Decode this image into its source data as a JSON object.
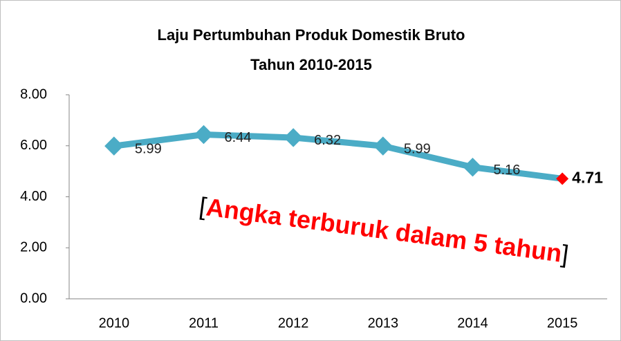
{
  "chart_data": {
    "type": "line",
    "title": [
      "Laju Pertumbuhan Produk Domestik Bruto",
      "Tahun 2010-2015"
    ],
    "categories": [
      "2010",
      "2011",
      "2012",
      "2013",
      "2014",
      "2015"
    ],
    "series": [
      {
        "name": "Laju Pertumbuhan",
        "color": "#4bacc6",
        "values": [
          5.99,
          6.44,
          6.32,
          5.99,
          5.16,
          4.71
        ],
        "marker_colors": [
          "#4bacc6",
          "#4bacc6",
          "#4bacc6",
          "#4bacc6",
          "#4bacc6",
          "#ff0000"
        ]
      }
    ],
    "ylim": [
      0,
      8
    ],
    "yticks": [
      {
        "value": 0,
        "label": "0.00"
      },
      {
        "value": 2,
        "label": "2.00"
      },
      {
        "value": 4,
        "label": "4.00"
      },
      {
        "value": 6,
        "label": "6.00"
      },
      {
        "value": 8,
        "label": "8.00"
      }
    ],
    "grid": false,
    "annotation": {
      "open": "[",
      "text": "Angka terburuk dalam 5 tahun",
      "close": "]",
      "color": "#ff0000"
    }
  }
}
